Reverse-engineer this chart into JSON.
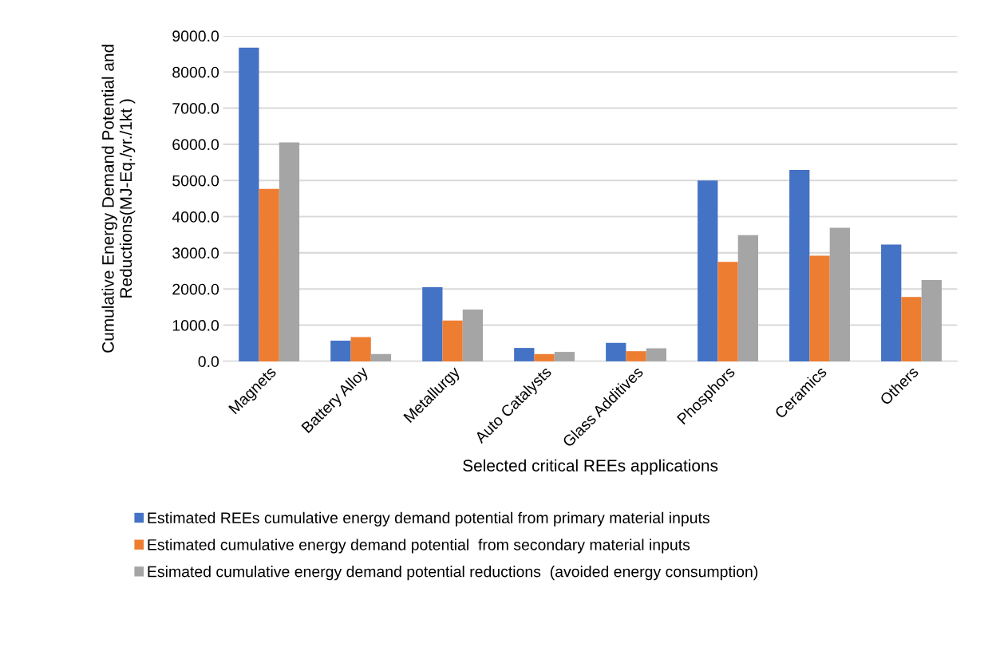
{
  "chart_data": {
    "type": "bar",
    "xlabel": "Selected critical REEs applications",
    "ylabel": "Cumulative Energy Demand Potential and Reductions(MJ-Eq./yr./1kt )",
    "categories": [
      "Magnets",
      "Battery Alloy",
      "Metallurgy",
      "Auto Catalysts",
      "Glass Additives",
      "Phosphors",
      "Ceramics",
      "Others"
    ],
    "series": [
      {
        "name": "Estimated REEs cumulative energy demand potential from primary material inputs",
        "color": "#4472c4",
        "values": [
          8670,
          570,
          2050,
          370,
          510,
          5000,
          5290,
          3230
        ]
      },
      {
        "name": "Estimated cumulative energy demand potential  from secondary material inputs",
        "color": "#ed7d31",
        "values": [
          4770,
          670,
          1130,
          200,
          280,
          2750,
          2920,
          1780
        ]
      },
      {
        "name": "Esimated cumulative energy demand potential reductions  (avoided energy consumption)",
        "color": "#a5a5a5",
        "values": [
          6050,
          200,
          1430,
          260,
          360,
          3490,
          3690,
          2250
        ]
      }
    ],
    "ylim": [
      0,
      9000
    ],
    "yticks": [
      {
        "value": 0,
        "label": "0.0"
      },
      {
        "value": 1000,
        "label": "1000.0"
      },
      {
        "value": 2000,
        "label": "2000.0"
      },
      {
        "value": 3000,
        "label": "3000.0"
      },
      {
        "value": 4000,
        "label": "4000.0"
      },
      {
        "value": 5000,
        "label": "5000.0"
      },
      {
        "value": 6000,
        "label": "6000.0"
      },
      {
        "value": 7000,
        "label": "7000.0"
      },
      {
        "value": 8000,
        "label": "8000.0"
      },
      {
        "value": 9000,
        "label": "9000.0"
      }
    ],
    "grid": "y",
    "legend": "bottom"
  }
}
